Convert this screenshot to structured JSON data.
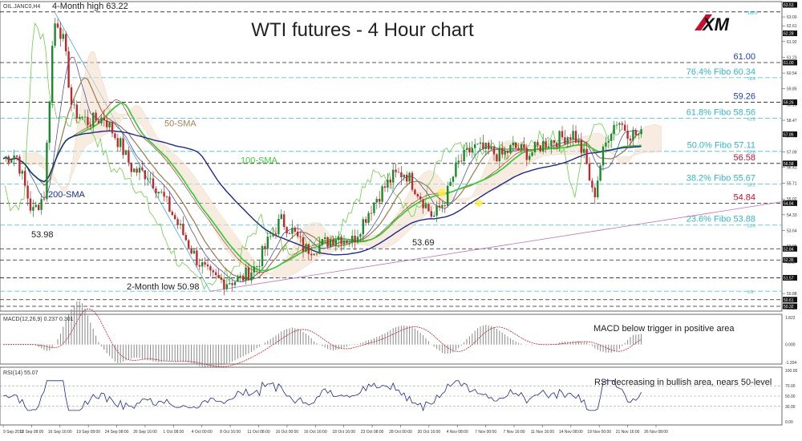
{
  "chart_data": {
    "type": "candlestick",
    "instrument": "OIL.JANC0,H4",
    "title": "WTI futures - 4 Hour chart",
    "brand": "XM",
    "ylim": [
      50.25,
      63.53
    ],
    "price_ticks": [
      "63.53",
      "63.00",
      "62.61",
      "61.92",
      "61.23",
      "60.54",
      "59.85",
      "59.16",
      "58.47",
      "57.79",
      "57.09",
      "56.41",
      "55.71",
      "55.02",
      "54.33",
      "53.64",
      "52.95",
      "52.27",
      "51.57",
      "50.88",
      "50.25"
    ],
    "price_box_labels": [
      "63.53",
      "62.28",
      "61.00",
      "59.26",
      "57.86",
      "56.58",
      "54.84",
      "52.84",
      "52.35",
      "51.57",
      "50.61",
      "50.32"
    ],
    "time_labels": [
      "9 Sep 2019",
      "12 Sep 08:00",
      "16 Sep 16:00",
      "19 Sep 08:00",
      "24 Sep 08:00",
      "26 Sep 16:00",
      "1 Oct 08:00",
      "4 Oct 00:00",
      "8 Oct 16:00",
      "11 Oct 08:00",
      "16 Oct 00:00",
      "16 Oct 16:00",
      "18 Oct 16:00",
      "23 Oct 08:00",
      "28 Oct 00:00",
      "30 Oct 16:00",
      "4 Nov 08:00",
      "7 Nov 00:00",
      "7 Nov 16:00",
      "11 Nov 16:00",
      "14 Nov 08:00",
      "19 Nov 00:00",
      "21 Nov 16:00",
      "26 Nov 08:00"
    ],
    "levels": [
      {
        "label": "61.00",
        "value": 61.0,
        "style": "dashed",
        "color": "#1f3fae"
      },
      {
        "label": "76.4% Fibo 60.34",
        "value": 60.34,
        "style": "fibo",
        "color": "#35b5c8",
        "tag": "76.4"
      },
      {
        "label": "59.26",
        "value": 59.26,
        "style": "dashed",
        "color": "#1f3fae"
      },
      {
        "label": "61.8% Fibo 58.56",
        "value": 58.56,
        "style": "fibo",
        "color": "#35b5c8",
        "tag": "61.8"
      },
      {
        "label": "50.0% Fibo 57.11",
        "value": 57.11,
        "style": "fibo",
        "color": "#35b5c8",
        "tag": "50.0"
      },
      {
        "label": "56.58",
        "value": 56.58,
        "style": "dashed",
        "color": "#c8102e"
      },
      {
        "label": "38.2% Fibo 55.67",
        "value": 55.67,
        "style": "fibo",
        "color": "#35b5c8",
        "tag": "38.2"
      },
      {
        "label": "54.84",
        "value": 54.84,
        "style": "dashed",
        "color": "#c8102e"
      },
      {
        "label": "23.6% Fibo 53.88",
        "value": 53.88,
        "style": "fibo",
        "color": "#35b5c8",
        "tag": "23.6"
      }
    ],
    "extra_lines": [
      52.84,
      52.35,
      51.57,
      50.61,
      50.32
    ],
    "fibo_top": {
      "tag": "100.0",
      "value": 63.22
    },
    "fibo_bottom": {
      "tag": "0.0",
      "value": 50.98
    },
    "annotations": [
      {
        "text": "4-Month high 63.22",
        "x": 64,
        "y": 63.22
      },
      {
        "text": "53.98",
        "x": 40,
        "y": 53.98
      },
      {
        "text": "2-Month low 50.98",
        "x": 258,
        "y": 50.98
      },
      {
        "text": "53.69",
        "x": 540,
        "y": 53.69
      },
      {
        "text": "50-SMA",
        "x": 205,
        "y": 58.2
      },
      {
        "text": "100-SMA",
        "x": 300,
        "y": 56.6
      },
      {
        "text": "200-SMA",
        "x": 60,
        "y": 55.1
      }
    ],
    "series": [
      {
        "name": "50-SMA",
        "color": "#a0825a"
      },
      {
        "name": "100-SMA",
        "color": "#3ecc3e"
      },
      {
        "name": "200-SMA",
        "color": "#1e2a8c"
      }
    ],
    "macd": {
      "label": "MACD(12,26,9) 0.237 0.301",
      "note": "MACD below trigger in positive area",
      "ticks": [
        "1.822",
        "0.000",
        "-1.204"
      ]
    },
    "rsi": {
      "label": "RSI(14) 55.07",
      "note": "RSI decreasing in bullish area, nears 50-level",
      "ticks": [
        "100.00",
        "70.00",
        "50.00",
        "30.00",
        "0.00"
      ]
    }
  }
}
